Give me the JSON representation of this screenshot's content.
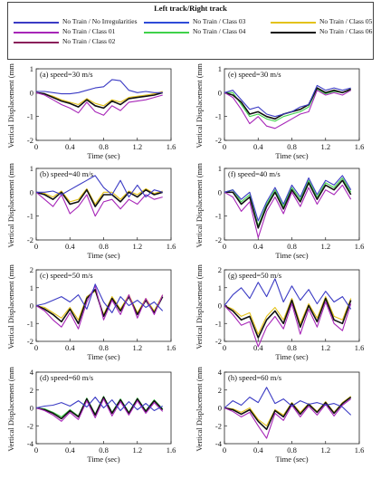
{
  "legend": {
    "title": "Left track/Right track",
    "entries": [
      {
        "label": "No Train / No Irregularities",
        "color": "#3b3bc4"
      },
      {
        "label": "No Train / Class 03",
        "color": "#2f4bd8"
      },
      {
        "label": "No Train / Class 05",
        "color": "#e3c21a"
      },
      {
        "label": "No Train / Class 01",
        "color": "#a726b8"
      },
      {
        "label": "No Train / Class 04",
        "color": "#3fd24a"
      },
      {
        "label": "No Train / Class 06",
        "color": "#111111"
      },
      {
        "label": "No Train / Class 02",
        "color": "#8a1f5a"
      }
    ]
  },
  "chart_data": [
    {
      "type": "line",
      "title": "(a) speed=30 m/s",
      "xlabel": "Time (sec)",
      "ylabel": "Vertical Displacement (mm)",
      "xlim": [
        0,
        1.6
      ],
      "ylim": [
        -2,
        1
      ],
      "xticks": [
        "0",
        "0.4",
        "0.8",
        "1.2",
        "1.6"
      ],
      "yticks": [
        "1",
        "0",
        "-1",
        "-2"
      ],
      "x": [
        0,
        0.1,
        0.2,
        0.3,
        0.4,
        0.5,
        0.6,
        0.7,
        0.8,
        0.9,
        1.0,
        1.1,
        1.2,
        1.3,
        1.4,
        1.5
      ],
      "series": [
        {
          "name": "No Train / No Irregularities",
          "values": [
            0.05,
            0.05,
            0.0,
            -0.05,
            -0.05,
            0.0,
            0.1,
            0.2,
            0.25,
            0.55,
            0.5,
            0.1,
            0.0,
            0.05,
            0.0,
            0.0
          ]
        },
        {
          "name": "No Train / Class 01",
          "values": [
            0,
            -0.1,
            -0.3,
            -0.5,
            -0.65,
            -0.85,
            -0.4,
            -0.8,
            -0.95,
            -0.55,
            -0.75,
            -0.4,
            -0.35,
            -0.3,
            -0.2,
            -0.1
          ]
        },
        {
          "name": "No Train / Class 06",
          "values": [
            0,
            -0.05,
            -0.2,
            -0.35,
            -0.45,
            -0.6,
            -0.3,
            -0.55,
            -0.65,
            -0.35,
            -0.5,
            -0.25,
            -0.2,
            -0.15,
            -0.1,
            0.0
          ]
        },
        {
          "name": "No Train / Class 05",
          "values": [
            0,
            -0.05,
            -0.15,
            -0.3,
            -0.4,
            -0.5,
            -0.25,
            -0.45,
            -0.55,
            -0.3,
            -0.4,
            -0.2,
            -0.15,
            -0.1,
            -0.05,
            0.05
          ]
        }
      ]
    },
    {
      "type": "line",
      "title": "(e) speed=30 m/s",
      "xlabel": "Time (sec)",
      "ylabel": "Vertical Displacement (mm)",
      "xlim": [
        0,
        1.6
      ],
      "ylim": [
        -2,
        1
      ],
      "xticks": [
        "0",
        "0.4",
        "0.8",
        "1.2",
        "1.6"
      ],
      "yticks": [
        "1",
        "0",
        "-1",
        "-2"
      ],
      "x": [
        0,
        0.1,
        0.2,
        0.3,
        0.4,
        0.5,
        0.6,
        0.7,
        0.8,
        0.9,
        1.0,
        1.1,
        1.2,
        1.3,
        1.4,
        1.5
      ],
      "series": [
        {
          "name": "No Train / No Irregularities",
          "values": [
            0,
            0.1,
            -0.3,
            -0.7,
            -0.6,
            -0.9,
            -1.0,
            -0.9,
            -0.8,
            -0.6,
            -0.5,
            0.3,
            0.1,
            0.2,
            0.1,
            0.2
          ]
        },
        {
          "name": "No Train / Class 01",
          "values": [
            0,
            -0.2,
            -0.7,
            -1.3,
            -1.0,
            -1.4,
            -1.5,
            -1.3,
            -1.1,
            -0.9,
            -0.8,
            0.1,
            -0.1,
            0.0,
            -0.1,
            0.1
          ]
        },
        {
          "name": "No Train / Class 06",
          "values": [
            0,
            -0.1,
            -0.4,
            -0.9,
            -0.8,
            -1.0,
            -1.1,
            -0.9,
            -0.8,
            -0.7,
            -0.5,
            0.2,
            0.0,
            0.1,
            0.0,
            0.15
          ]
        },
        {
          "name": "No Train / Class 04",
          "values": [
            0,
            0.0,
            -0.5,
            -1.0,
            -0.9,
            -1.1,
            -1.2,
            -1.0,
            -0.9,
            -0.8,
            -0.6,
            0.15,
            -0.05,
            0.05,
            0.0,
            0.1
          ]
        }
      ]
    },
    {
      "type": "line",
      "title": "(b) speed=40 m/s",
      "xlabel": "Time (sec)",
      "ylabel": "Vertical Displacement (mm)",
      "xlim": [
        0,
        1.6
      ],
      "ylim": [
        -2,
        1
      ],
      "xticks": [
        "0",
        "0.4",
        "0.8",
        "1.2",
        "1.6"
      ],
      "yticks": [
        "1",
        "0",
        "-1",
        "-2"
      ],
      "x": [
        0,
        0.1,
        0.2,
        0.3,
        0.4,
        0.5,
        0.6,
        0.7,
        0.8,
        0.9,
        1.0,
        1.1,
        1.2,
        1.3,
        1.4,
        1.5
      ],
      "series": [
        {
          "name": "No Train / No Irregularities",
          "values": [
            0,
            0.0,
            0.05,
            -0.1,
            0.1,
            0.3,
            0.5,
            0.7,
            0.2,
            -0.1,
            0.5,
            -0.2,
            0.3,
            -0.2,
            0.1,
            0.0
          ]
        },
        {
          "name": "No Train / Class 01",
          "values": [
            0,
            -0.3,
            -0.6,
            -0.1,
            -0.9,
            -0.6,
            -0.1,
            -1.0,
            -0.4,
            -0.3,
            -0.7,
            -0.3,
            -0.5,
            -0.1,
            -0.3,
            -0.2
          ]
        },
        {
          "name": "No Train / Class 06",
          "values": [
            0,
            -0.1,
            -0.3,
            0.0,
            -0.5,
            -0.4,
            0.1,
            -0.6,
            -0.1,
            -0.1,
            -0.4,
            0.0,
            -0.2,
            0.1,
            -0.1,
            0.0
          ]
        },
        {
          "name": "No Train / Class 05",
          "values": [
            0,
            -0.05,
            -0.2,
            0.05,
            -0.4,
            -0.3,
            0.15,
            -0.5,
            0.0,
            0.0,
            -0.3,
            0.05,
            -0.1,
            0.15,
            -0.05,
            0.05
          ]
        }
      ]
    },
    {
      "type": "line",
      "title": "(f) speed=40 m/s",
      "xlabel": "Time (sec)",
      "ylabel": "Vertical Displacement (mm)",
      "xlim": [
        0,
        1.6
      ],
      "ylim": [
        -2,
        1
      ],
      "xticks": [
        "0",
        "0.4",
        "0.8",
        "1.2",
        "1.6"
      ],
      "yticks": [
        "1",
        "0",
        "-1",
        "-2"
      ],
      "x": [
        0,
        0.1,
        0.2,
        0.3,
        0.4,
        0.5,
        0.6,
        0.7,
        0.8,
        0.9,
        1.0,
        1.1,
        1.2,
        1.3,
        1.4,
        1.5
      ],
      "series": [
        {
          "name": "No Train / No Irregularities",
          "values": [
            0,
            0.1,
            -0.3,
            0.0,
            -1.2,
            -0.4,
            0.2,
            -0.5,
            0.3,
            -0.2,
            0.6,
            -0.1,
            0.5,
            0.3,
            0.7,
            0.1
          ]
        },
        {
          "name": "No Train / Class 01",
          "values": [
            0,
            -0.2,
            -0.8,
            -0.4,
            -1.9,
            -0.8,
            -0.2,
            -0.9,
            0.0,
            -0.6,
            0.2,
            -0.5,
            0.1,
            -0.1,
            0.3,
            -0.3
          ]
        },
        {
          "name": "No Train / Class 06",
          "values": [
            0,
            0.0,
            -0.5,
            -0.2,
            -1.5,
            -0.6,
            0.0,
            -0.7,
            0.1,
            -0.4,
            0.4,
            -0.3,
            0.3,
            0.1,
            0.5,
            -0.1
          ]
        },
        {
          "name": "No Train / Class 04",
          "values": [
            0,
            0.1,
            -0.4,
            -0.1,
            -1.4,
            -0.5,
            0.1,
            -0.6,
            0.2,
            -0.3,
            0.5,
            -0.2,
            0.4,
            0.2,
            0.6,
            0.0
          ]
        }
      ]
    },
    {
      "type": "line",
      "title": "(c) speed=50 m/s",
      "xlabel": "Time (sec)",
      "ylabel": "Vertical Displacement (mm)",
      "xlim": [
        0,
        1.6
      ],
      "ylim": [
        -2,
        2
      ],
      "xticks": [
        "0",
        "0.4",
        "0.8",
        "1.2",
        "1.6"
      ],
      "yticks": [
        "2",
        "1",
        "0",
        "-1",
        "-2"
      ],
      "x": [
        0,
        0.1,
        0.2,
        0.3,
        0.4,
        0.5,
        0.6,
        0.7,
        0.8,
        0.9,
        1.0,
        1.1,
        1.2,
        1.3,
        1.4,
        1.5
      ],
      "series": [
        {
          "name": "No Train / No Irregularities",
          "values": [
            0,
            0.1,
            0.3,
            0.5,
            0.2,
            0.6,
            -0.2,
            1.2,
            0.2,
            -0.4,
            0.5,
            0.0,
            0.3,
            -0.1,
            0.2,
            -0.3
          ]
        },
        {
          "name": "No Train / Class 01",
          "values": [
            0,
            -0.3,
            -0.8,
            -1.2,
            -0.4,
            -1.3,
            0.2,
            1.1,
            -0.8,
            0.3,
            -0.5,
            0.6,
            -0.7,
            0.4,
            -0.5,
            0.6
          ]
        },
        {
          "name": "No Train / Class 06",
          "values": [
            0,
            -0.2,
            -0.5,
            -0.9,
            -0.2,
            -1.0,
            0.4,
            0.9,
            -0.6,
            0.4,
            -0.3,
            0.5,
            -0.5,
            0.3,
            -0.4,
            0.5
          ]
        },
        {
          "name": "No Train / Class 05",
          "values": [
            0,
            -0.1,
            -0.4,
            -0.7,
            -0.1,
            -0.8,
            0.5,
            0.8,
            -0.5,
            0.5,
            -0.2,
            0.6,
            -0.4,
            0.4,
            -0.3,
            0.6
          ]
        }
      ]
    },
    {
      "type": "line",
      "title": "(g) speed=50 m/s",
      "xlabel": "Time (sec)",
      "ylabel": "Vertical Displacement (mm)",
      "xlim": [
        0,
        1.6
      ],
      "ylim": [
        -2,
        2
      ],
      "xticks": [
        "0",
        "0.4",
        "0.8",
        "1.2",
        "1.6"
      ],
      "yticks": [
        "2",
        "1",
        "0",
        "-1",
        "-2"
      ],
      "x": [
        0,
        0.1,
        0.2,
        0.3,
        0.4,
        0.5,
        0.6,
        0.7,
        0.8,
        0.9,
        1.0,
        1.1,
        1.2,
        1.3,
        1.4,
        1.5
      ],
      "series": [
        {
          "name": "No Train / No Irregularities",
          "values": [
            0,
            0.6,
            1.0,
            0.4,
            1.3,
            0.5,
            1.5,
            0.2,
            1.1,
            0.3,
            0.9,
            0.1,
            0.8,
            0.2,
            0.5,
            -0.2
          ]
        },
        {
          "name": "No Train / Class 01",
          "values": [
            0,
            -0.5,
            -1.1,
            -0.9,
            -2.3,
            -1.2,
            -0.6,
            -1.3,
            0.1,
            -1.6,
            -0.2,
            -1.2,
            0.2,
            -1.0,
            -1.4,
            0.1
          ]
        },
        {
          "name": "No Train / Class 06",
          "values": [
            0,
            -0.3,
            -0.8,
            -0.6,
            -1.8,
            -0.8,
            -0.3,
            -1.0,
            0.3,
            -1.2,
            0.0,
            -0.9,
            0.4,
            -0.8,
            -1.0,
            0.3
          ]
        },
        {
          "name": "No Train / Class 05",
          "values": [
            0,
            -0.2,
            -0.6,
            -0.4,
            -1.6,
            -0.6,
            -0.1,
            -0.8,
            0.4,
            -1.0,
            0.1,
            -0.7,
            0.5,
            -0.6,
            -0.8,
            0.4
          ]
        }
      ]
    },
    {
      "type": "line",
      "title": "(d) speed=60 m/s",
      "xlabel": "Time (sec)",
      "ylabel": "Vertical Displacement (mm)",
      "xlim": [
        0,
        1.6
      ],
      "ylim": [
        -4,
        4
      ],
      "xticks": [
        "0",
        "0.4",
        "0.8",
        "1.2",
        "1.6"
      ],
      "yticks": [
        "4",
        "2",
        "0",
        "-2",
        "-4"
      ],
      "x": [
        0,
        0.1,
        0.2,
        0.3,
        0.4,
        0.5,
        0.6,
        0.7,
        0.8,
        0.9,
        1.0,
        1.1,
        1.2,
        1.3,
        1.4,
        1.5
      ],
      "series": [
        {
          "name": "No Train / No Irregularities",
          "values": [
            0,
            0.2,
            0.3,
            0.6,
            0.2,
            0.8,
            0.1,
            1.2,
            0.0,
            0.9,
            -0.3,
            0.7,
            -0.2,
            0.5,
            -0.3,
            0.2
          ]
        },
        {
          "name": "No Train / Class 01",
          "values": [
            0,
            -0.3,
            -0.8,
            -1.5,
            -0.5,
            -1.3,
            0.8,
            -1.1,
            1.0,
            -0.9,
            0.7,
            -0.8,
            0.8,
            -0.6,
            0.6,
            -0.4
          ]
        },
        {
          "name": "No Train / Class 06",
          "values": [
            0,
            -0.2,
            -0.6,
            -1.2,
            -0.3,
            -1.0,
            1.0,
            -0.8,
            1.2,
            -0.6,
            0.9,
            -0.6,
            1.0,
            -0.4,
            0.8,
            -0.2
          ]
        },
        {
          "name": "No Train / Class 04",
          "values": [
            0,
            -0.1,
            -0.5,
            -1.0,
            -0.2,
            -0.9,
            1.1,
            -0.7,
            1.3,
            -0.5,
            1.0,
            -0.5,
            1.1,
            -0.3,
            0.9,
            -0.1
          ]
        }
      ]
    },
    {
      "type": "line",
      "title": "(h) speed=60 m/s",
      "xlabel": "Time (sec)",
      "ylabel": "Vertical Displacement (mm)",
      "xlim": [
        0,
        1.6
      ],
      "ylim": [
        -4,
        4
      ],
      "xticks": [
        "0",
        "0.4",
        "0.8",
        "1.2",
        "1.6"
      ],
      "yticks": [
        "4",
        "2",
        "0",
        "-2",
        "-4"
      ],
      "x": [
        0,
        0.1,
        0.2,
        0.3,
        0.4,
        0.5,
        0.6,
        0.7,
        0.8,
        0.9,
        1.0,
        1.1,
        1.2,
        1.3,
        1.4,
        1.5
      ],
      "series": [
        {
          "name": "No Train / No Irregularities",
          "values": [
            0,
            0.8,
            0.3,
            1.2,
            0.6,
            2.3,
            0.5,
            1.0,
            0.2,
            0.8,
            0.4,
            0.6,
            0.3,
            0.5,
            0.1,
            -0.8
          ]
        },
        {
          "name": "No Train / Class 01",
          "values": [
            0,
            -0.4,
            -1.0,
            -0.5,
            -2.0,
            -3.4,
            -0.6,
            -1.4,
            0.3,
            -1.0,
            0.2,
            -0.8,
            0.4,
            -0.9,
            0.3,
            1.0
          ]
        },
        {
          "name": "No Train / Class 06",
          "values": [
            0,
            -0.2,
            -0.7,
            -0.2,
            -1.5,
            -2.4,
            -0.3,
            -1.0,
            0.5,
            -0.7,
            0.4,
            -0.5,
            0.6,
            -0.6,
            0.5,
            1.2
          ]
        },
        {
          "name": "No Train / Class 05",
          "values": [
            0,
            -0.1,
            -0.5,
            0.0,
            -1.3,
            -2.0,
            -0.2,
            -0.8,
            0.6,
            -0.5,
            0.5,
            -0.4,
            0.7,
            -0.5,
            0.6,
            1.3
          ]
        }
      ]
    }
  ]
}
